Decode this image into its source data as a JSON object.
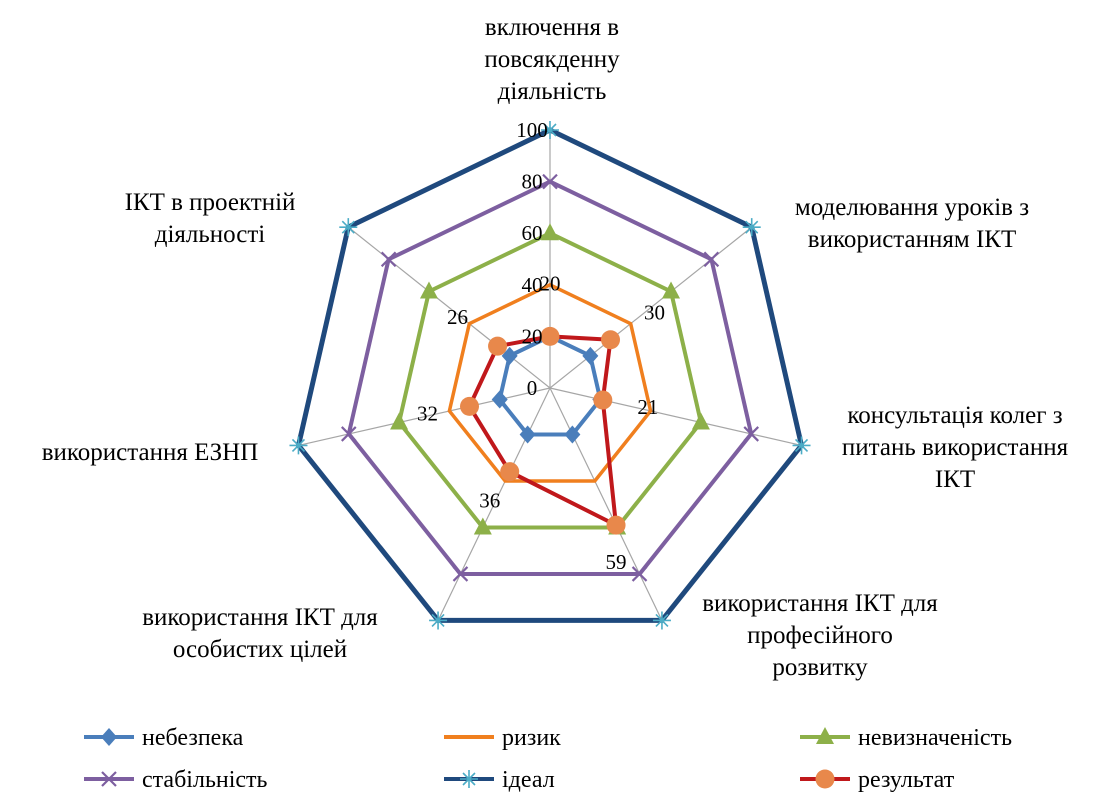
{
  "chart_data": {
    "type": "radar",
    "axis_max": 100,
    "ticks": [
      0,
      20,
      40,
      60,
      80,
      100
    ],
    "axes": [
      {
        "key": "a0",
        "label_lines": [
          "включення в",
          "повсякденну",
          "діяльність"
        ]
      },
      {
        "key": "a1",
        "label_lines": [
          "моделювання уроків з",
          "використанням ІКТ"
        ]
      },
      {
        "key": "a2",
        "label_lines": [
          "консультація колег з",
          "питань використання",
          "ІКТ"
        ]
      },
      {
        "key": "a3",
        "label_lines": [
          "використання ІКТ для",
          "професійного",
          "розвитку"
        ]
      },
      {
        "key": "a4",
        "label_lines": [
          "використання ІКТ для",
          "особистих цілей"
        ]
      },
      {
        "key": "a5",
        "label_lines": [
          "використання ЕЗНП"
        ]
      },
      {
        "key": "a6",
        "label_lines": [
          "ІКТ в проектній",
          "діяльності"
        ]
      }
    ],
    "series": [
      {
        "name": "небезпека",
        "color": "#4a7ebb",
        "marker": "diamond",
        "values": [
          20,
          20,
          20,
          20,
          20,
          20,
          20
        ]
      },
      {
        "name": "ризик",
        "color": "#f07f1e",
        "marker": "none",
        "values": [
          40,
          40,
          40,
          40,
          40,
          40,
          40
        ]
      },
      {
        "name": "невизначеність",
        "color": "#8db049",
        "marker": "triangle",
        "values": [
          60,
          60,
          60,
          60,
          60,
          60,
          60
        ]
      },
      {
        "name": "стабільність",
        "color": "#7d5fa0",
        "marker": "x",
        "values": [
          80,
          80,
          80,
          80,
          80,
          80,
          80
        ]
      },
      {
        "name": "ідеал",
        "color": "#1f497d",
        "marker": "star",
        "values": [
          100,
          100,
          100,
          100,
          100,
          100,
          100
        ]
      },
      {
        "name": "результат",
        "color": "#c0181b",
        "marker": "circle",
        "marker_color": "#e8884b",
        "values": [
          20,
          30,
          21,
          59,
          36,
          32,
          26
        ]
      }
    ],
    "data_labels": [
      "20",
      "30",
      "21",
      "59",
      "36",
      "32",
      "26"
    ],
    "legend": {
      "position": "bottom"
    }
  }
}
